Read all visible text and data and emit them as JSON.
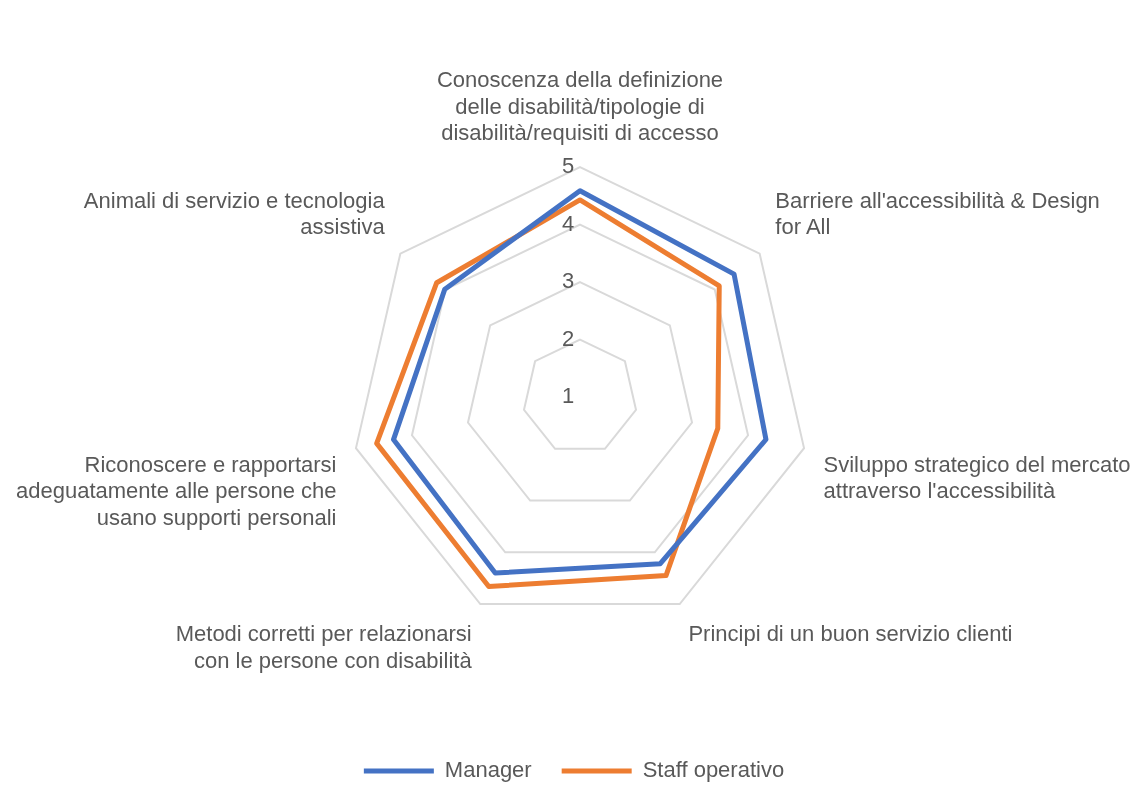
{
  "chart_data": {
    "type": "radar",
    "categories": [
      "Conoscenza della definizione delle disabilità/tipologie di disabilità/requisiti di accesso",
      "Barriere all'accessibilità & Design for All",
      "Sviluppo strategico del mercato attraverso l'accessibilità",
      "Principi di un buon servizio clienti",
      "Metodi corretti per relazionarsi con le persone con disabilità",
      "Riconoscere e rapportarsi adeguatamente alle persone che usano supporti personali",
      "Animali di servizio e tecnologia assistiva"
    ],
    "series": [
      {
        "name": "Manager",
        "color": "#4472c4",
        "values": [
          4.59,
          4.43,
          4.32,
          4.22,
          4.4,
          4.33,
          4.01
        ]
      },
      {
        "name": "Staff operativo",
        "color": "#ed7d31",
        "values": [
          4.43,
          4.1,
          3.46,
          4.45,
          4.66,
          4.63,
          4.19
        ]
      }
    ],
    "ylim": [
      1,
      5
    ],
    "yticks": [
      1,
      2,
      3,
      4,
      5
    ],
    "grid": true,
    "legend": "bottom",
    "marker": "none"
  }
}
